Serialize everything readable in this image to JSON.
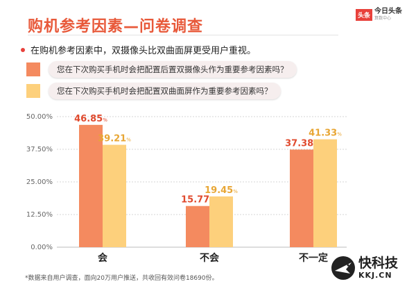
{
  "header": {
    "title": "购机参考因素—问卷调查",
    "brand_box": "头条",
    "brand_main": "今日头条",
    "brand_sub": "算数中心"
  },
  "subtitle": "在购机参考因素中，双摄像头比双曲面屏更受用户重视。",
  "legend": [
    {
      "text": "您在下次购买手机时会把配置后置双摄像头作为重要参考因素吗？",
      "color": "#f48a5f"
    },
    {
      "text": "您在下次购买手机时会把配置双曲面屏作为重要参考因素吗？",
      "color": "#fdd07c"
    }
  ],
  "chart_data": {
    "type": "bar",
    "categories": [
      "会",
      "不会",
      "不一定"
    ],
    "series": [
      {
        "values": [
          46.85,
          15.77,
          37.38
        ],
        "color": "#f48a5f",
        "label_color": "#e04a2e"
      },
      {
        "values": [
          39.21,
          19.45,
          41.33
        ],
        "color": "#fdd07c",
        "label_color": "#e8a634"
      }
    ],
    "y_ticks": [
      "0.00%",
      "12.50%",
      "25.00%",
      "37.50%",
      "50.00%"
    ],
    "ylim": [
      0,
      50
    ],
    "grid": true,
    "unit": "%"
  },
  "footnote": "*数据来自用户调查，面向20万用户推送，共收回有效问卷18690份。",
  "logo": {
    "main": "快科技",
    "sub": "KKJ.CN"
  }
}
